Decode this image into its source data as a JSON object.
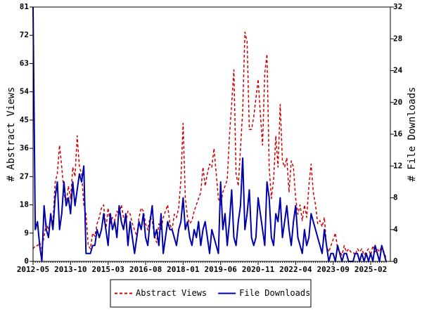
{
  "chart_data": {
    "type": "line",
    "x": [
      "2012-05",
      "2012-06",
      "2012-07",
      "2012-08",
      "2012-09",
      "2012-10",
      "2012-11",
      "2012-12",
      "2013-01",
      "2013-02",
      "2013-03",
      "2013-04",
      "2013-05",
      "2013-06",
      "2013-07",
      "2013-08",
      "2013-09",
      "2013-10",
      "2013-11",
      "2013-12",
      "2014-01",
      "2014-02",
      "2014-03",
      "2014-04",
      "2014-05",
      "2014-06",
      "2014-07",
      "2014-08",
      "2014-09",
      "2014-10",
      "2014-11",
      "2014-12",
      "2015-01",
      "2015-02",
      "2015-03",
      "2015-04",
      "2015-05",
      "2015-06",
      "2015-07",
      "2015-08",
      "2015-09",
      "2015-10",
      "2015-11",
      "2015-12",
      "2016-01",
      "2016-02",
      "2016-03",
      "2016-04",
      "2016-05",
      "2016-06",
      "2016-07",
      "2016-08",
      "2016-09",
      "2016-10",
      "2016-11",
      "2016-12",
      "2017-01",
      "2017-02",
      "2017-03",
      "2017-04",
      "2017-05",
      "2017-06",
      "2017-07",
      "2017-08",
      "2017-09",
      "2017-10",
      "2017-11",
      "2017-12",
      "2018-01",
      "2018-02",
      "2018-03",
      "2018-04",
      "2018-05",
      "2018-06",
      "2018-07",
      "2018-08",
      "2018-09",
      "2018-10",
      "2018-11",
      "2018-12",
      "2019-01",
      "2019-02",
      "2019-03",
      "2019-04",
      "2019-05",
      "2019-06",
      "2019-07",
      "2019-08",
      "2019-09",
      "2019-10",
      "2019-11",
      "2019-12",
      "2020-01",
      "2020-02",
      "2020-03",
      "2020-04",
      "2020-05",
      "2020-06",
      "2020-07",
      "2020-08",
      "2020-09",
      "2020-10",
      "2020-11",
      "2020-12",
      "2021-01",
      "2021-02",
      "2021-03",
      "2021-04",
      "2021-05",
      "2021-06",
      "2021-07",
      "2021-08",
      "2021-09",
      "2021-10",
      "2021-11",
      "2021-12",
      "2022-01",
      "2022-02",
      "2022-03",
      "2022-04",
      "2022-05",
      "2022-06",
      "2022-07",
      "2022-08",
      "2022-09",
      "2022-10",
      "2022-11",
      "2022-12",
      "2023-01",
      "2023-02",
      "2023-03",
      "2023-04",
      "2023-05",
      "2023-06",
      "2023-07",
      "2023-08",
      "2023-09",
      "2023-10",
      "2023-11",
      "2023-12",
      "2024-01",
      "2024-02",
      "2024-03",
      "2024-04",
      "2024-05",
      "2024-06",
      "2024-07",
      "2024-08",
      "2024-09",
      "2024-10",
      "2024-11",
      "2024-12",
      "2025-01",
      "2025-02",
      "2025-03",
      "2025-04",
      "2025-05",
      "2025-06",
      "2025-07",
      "2025-08",
      "2025-09"
    ],
    "xticks": [
      "2012-05",
      "2013-10",
      "2015-03",
      "2016-08",
      "2018-01",
      "2019-06",
      "2020-11",
      "2022-04",
      "2023-09",
      "2025-02"
    ],
    "ylabel": "# Abstract Views",
    "y2label": "# File Downloads",
    "ylim": [
      0,
      81
    ],
    "yticks": [
      0,
      9,
      18,
      27,
      36,
      45,
      54,
      63,
      72,
      81
    ],
    "y2lim": [
      0,
      32
    ],
    "y2ticks": [
      0,
      4,
      8,
      12,
      16,
      20,
      24,
      28,
      32
    ],
    "legend": "bottom",
    "series": [
      {
        "name": "Abstract Views",
        "color": "#cc0000",
        "style": "dashed",
        "values": [
          4,
          5,
          5,
          6,
          4,
          8,
          12,
          10,
          14,
          12,
          25,
          28,
          37,
          30,
          22,
          18,
          24,
          20,
          30,
          27,
          40,
          30,
          28,
          18,
          15,
          5,
          4,
          9,
          8,
          12,
          14,
          17,
          18,
          10,
          17,
          12,
          14,
          13,
          16,
          15,
          18,
          14,
          12,
          16,
          15,
          12,
          10,
          8,
          14,
          17,
          16,
          12,
          10,
          14,
          13,
          8,
          6,
          12,
          10,
          14,
          16,
          18,
          12,
          10,
          15,
          14,
          17,
          26,
          44,
          20,
          14,
          12,
          13,
          16,
          18,
          20,
          22,
          30,
          24,
          28,
          31,
          30,
          36,
          28,
          20,
          18,
          22,
          24,
          26,
          40,
          50,
          61,
          28,
          24,
          36,
          48,
          73,
          70,
          42,
          42,
          46,
          52,
          58,
          47,
          37,
          60,
          66,
          30,
          20,
          26,
          40,
          30,
          50,
          32,
          30,
          33,
          22,
          32,
          30,
          20,
          15,
          18,
          13,
          18,
          14,
          24,
          31,
          22,
          18,
          12,
          13,
          11,
          14,
          5,
          3,
          5,
          7,
          9,
          4,
          3,
          2,
          5,
          3,
          4,
          3,
          3,
          2,
          4,
          3,
          4,
          2,
          3,
          4,
          2,
          5,
          3,
          4,
          3,
          5,
          3,
          1
        ]
      },
      {
        "name": "File Downloads",
        "color": "#0000aa",
        "style": "solid",
        "axis": "y2",
        "values": [
          32,
          4,
          5,
          2,
          0,
          7,
          4,
          3,
          6,
          4,
          8,
          10,
          4,
          6,
          10,
          7,
          8,
          6,
          10,
          7,
          9,
          11,
          10,
          12,
          1,
          1,
          1,
          2,
          2,
          4,
          3,
          4,
          6,
          4,
          2,
          6,
          4,
          5,
          3,
          7,
          5,
          4,
          6,
          2,
          5,
          3,
          1,
          3,
          5,
          4,
          6,
          3,
          2,
          5,
          7,
          3,
          4,
          2,
          6,
          1,
          3,
          5,
          4,
          4,
          3,
          2,
          4,
          5,
          8,
          4,
          5,
          3,
          2,
          4,
          3,
          5,
          2,
          4,
          5,
          3,
          1,
          4,
          3,
          2,
          1,
          10,
          4,
          6,
          2,
          5,
          9,
          3,
          2,
          5,
          7,
          13,
          4,
          6,
          9,
          3,
          2,
          3,
          8,
          6,
          4,
          2,
          10,
          8,
          3,
          2,
          6,
          5,
          8,
          3,
          5,
          7,
          4,
          2,
          5,
          7,
          3,
          2,
          1,
          4,
          2,
          3,
          6,
          5,
          4,
          3,
          2,
          1,
          4,
          2,
          0,
          1,
          1,
          0,
          2,
          1,
          0,
          1,
          1,
          0,
          0,
          0,
          1,
          1,
          0,
          1,
          0,
          1,
          0,
          1,
          0,
          2,
          1,
          0,
          2,
          1,
          0
        ]
      }
    ]
  }
}
